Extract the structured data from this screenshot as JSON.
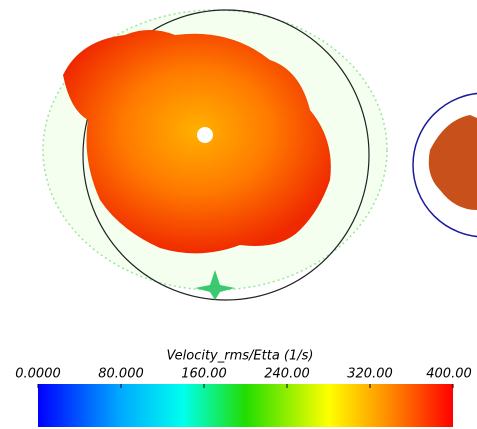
{
  "colorbar": {
    "title": "Velocity_rms/Etta (1/s)",
    "range": [
      0,
      400
    ],
    "ticks": [
      {
        "value": 0,
        "label": "0.0000"
      },
      {
        "value": 80,
        "label": "80.000"
      },
      {
        "value": 160,
        "label": "160.00"
      },
      {
        "value": 240,
        "label": "240.00"
      },
      {
        "value": 320,
        "label": "320.00"
      },
      {
        "value": 400,
        "label": "400.00"
      }
    ]
  }
}
